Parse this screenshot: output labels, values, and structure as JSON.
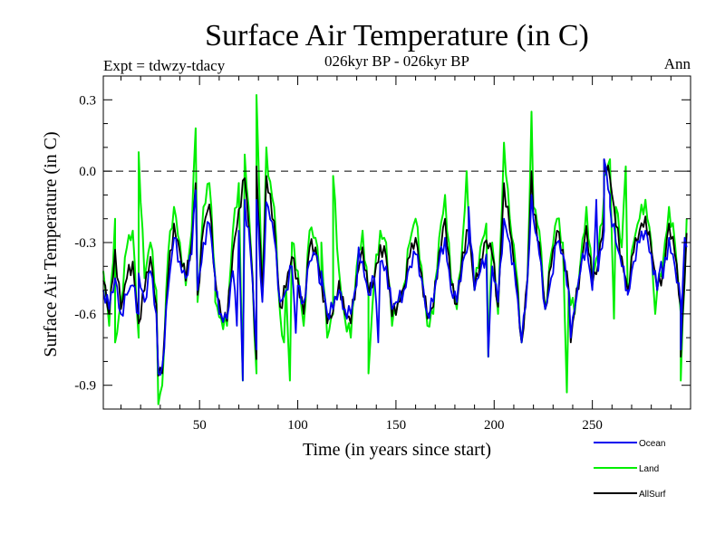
{
  "chart_data": {
    "type": "line",
    "title": "Surface Air Temperature (in C)",
    "subtitle": "026kyr BP - 026kyr BP",
    "left_note": "Expt = tdwzy-tdacy",
    "right_note": "Ann",
    "xlabel": "Time (in years since start)",
    "ylabel": "Surface Air Temperature (in C)",
    "xlim": [
      1,
      300
    ],
    "ylim": [
      -1.0,
      0.4
    ],
    "x_ticks": [
      50,
      100,
      150,
      200,
      250
    ],
    "x_tick_labels": [
      "50",
      "100",
      "150",
      "200",
      "250"
    ],
    "y_ticks": [
      0.3,
      0.0,
      -0.3,
      -0.6,
      -0.9
    ],
    "y_tick_labels": [
      "0.3",
      "0.0",
      "-0.3",
      "-0.6",
      "-0.9"
    ],
    "reference_line": 0.0,
    "x_step": 3,
    "series": [
      {
        "name": "Ocean",
        "color": "#0000ee",
        "values": [
          -0.5,
          -0.58,
          -0.45,
          -0.6,
          -0.52,
          -0.48,
          -0.6,
          -0.55,
          -0.42,
          -0.6,
          -0.82,
          -0.5,
          -0.28,
          -0.38,
          -0.45,
          -0.35,
          -0.5,
          -0.3,
          -0.22,
          -0.45,
          -0.6,
          -0.62,
          -0.42,
          -0.25,
          -0.12,
          -0.35,
          -0.75,
          -0.55,
          -0.15,
          -0.28,
          -0.55,
          -0.5,
          -0.4,
          -0.48,
          -0.55,
          -0.38,
          -0.35,
          -0.48,
          -0.6,
          -0.58,
          -0.5,
          -0.58,
          -0.6,
          -0.48,
          -0.38,
          -0.52,
          -0.45,
          -0.38,
          -0.4,
          -0.58,
          -0.55,
          -0.5,
          -0.4,
          -0.35,
          -0.45,
          -0.6,
          -0.55,
          -0.38,
          -0.28,
          -0.5,
          -0.55,
          -0.38,
          -0.3,
          -0.5,
          -0.42,
          -0.35,
          -0.4,
          -0.55,
          -0.2,
          -0.3,
          -0.48,
          -0.72,
          -0.45,
          -0.2,
          -0.35,
          -0.58,
          -0.45,
          -0.3,
          -0.35,
          -0.5,
          -0.58,
          -0.42,
          -0.3,
          -0.5,
          -0.42,
          -0.25,
          -0.1,
          -0.3,
          -0.4,
          -0.5,
          -0.38,
          -0.3,
          -0.25,
          -0.35,
          -0.5,
          -0.45,
          -0.28,
          -0.4,
          -0.55,
          -0.32
        ],
        "peaks": [
          [
            19,
            -0.43
          ],
          [
            29,
            -0.85
          ],
          [
            48,
            -0.08
          ],
          [
            58,
            -0.5
          ],
          [
            69,
            -0.65
          ],
          [
            72,
            -0.88
          ],
          [
            79,
            -0.12
          ],
          [
            84,
            -0.13
          ],
          [
            99,
            -0.68
          ],
          [
            112,
            -0.42
          ],
          [
            131,
            -0.32
          ],
          [
            141,
            -0.72
          ],
          [
            187,
            -0.15
          ],
          [
            197,
            -0.78
          ],
          [
            219,
            -0.1
          ],
          [
            239,
            -0.7
          ],
          [
            252,
            -0.12
          ],
          [
            256,
            0.05
          ],
          [
            259,
            -0.15
          ],
          [
            268,
            -0.52
          ],
          [
            285,
            -0.38
          ],
          [
            295,
            -0.75
          ],
          [
            297,
            -0.28
          ]
        ]
      },
      {
        "name": "Land",
        "color": "#00ee00",
        "values": [
          -0.42,
          -0.65,
          -0.2,
          -0.55,
          -0.32,
          -0.25,
          -0.7,
          -0.45,
          -0.3,
          -0.5,
          -0.9,
          -0.35,
          -0.15,
          -0.3,
          -0.48,
          -0.25,
          -0.55,
          -0.15,
          -0.05,
          -0.45,
          -0.62,
          -0.65,
          -0.25,
          -0.05,
          0.07,
          -0.3,
          -0.85,
          -0.5,
          -0.02,
          -0.15,
          -0.6,
          -0.48,
          -0.3,
          -0.42,
          -0.65,
          -0.25,
          -0.28,
          -0.45,
          -0.7,
          -0.6,
          -0.42,
          -0.62,
          -0.7,
          -0.4,
          -0.25,
          -0.52,
          -0.45,
          -0.25,
          -0.3,
          -0.65,
          -0.55,
          -0.48,
          -0.3,
          -0.2,
          -0.4,
          -0.65,
          -0.6,
          -0.28,
          -0.1,
          -0.45,
          -0.58,
          -0.28,
          -0.2,
          -0.5,
          -0.32,
          -0.22,
          -0.3,
          -0.6,
          0.12,
          -0.2,
          -0.4,
          -0.72,
          -0.45,
          -0.15,
          -0.25,
          -0.58,
          -0.35,
          -0.2,
          -0.3,
          -0.5,
          -0.6,
          -0.38,
          -0.15,
          -0.45,
          -0.35,
          -0.1,
          0.05,
          -0.15,
          -0.32,
          -0.5,
          -0.3,
          -0.2,
          -0.12,
          -0.3,
          -0.5,
          -0.38,
          -0.15,
          -0.3,
          -0.6,
          -0.2
        ],
        "peaks": [
          [
            7,
            -0.72
          ],
          [
            19,
            0.08
          ],
          [
            29,
            -0.98
          ],
          [
            48,
            0.18
          ],
          [
            58,
            -0.55
          ],
          [
            72,
            -0.88
          ],
          [
            79,
            0.32
          ],
          [
            84,
            0.1
          ],
          [
            93,
            -0.72
          ],
          [
            96,
            -0.88
          ],
          [
            112,
            -0.3
          ],
          [
            118,
            -0.02
          ],
          [
            136,
            -0.85
          ],
          [
            186,
            0.0
          ],
          [
            197,
            -0.78
          ],
          [
            219,
            0.25
          ],
          [
            237,
            -0.93
          ],
          [
            256,
            -0.02
          ],
          [
            261,
            -0.62
          ],
          [
            267,
            0.02
          ],
          [
            282,
            -0.6
          ],
          [
            295,
            -0.88
          ]
        ]
      },
      {
        "name": "AllSurf",
        "color": "#000000",
        "values": [
          -0.46,
          -0.6,
          -0.33,
          -0.58,
          -0.45,
          -0.38,
          -0.64,
          -0.5,
          -0.36,
          -0.56,
          -0.85,
          -0.44,
          -0.22,
          -0.34,
          -0.46,
          -0.3,
          -0.52,
          -0.24,
          -0.14,
          -0.45,
          -0.61,
          -0.63,
          -0.34,
          -0.16,
          -0.03,
          -0.32,
          -0.79,
          -0.52,
          -0.09,
          -0.21,
          -0.57,
          -0.49,
          -0.36,
          -0.45,
          -0.6,
          -0.32,
          -0.32,
          -0.46,
          -0.64,
          -0.59,
          -0.46,
          -0.6,
          -0.64,
          -0.44,
          -0.32,
          -0.52,
          -0.45,
          -0.31,
          -0.36,
          -0.61,
          -0.55,
          -0.49,
          -0.36,
          -0.28,
          -0.43,
          -0.62,
          -0.57,
          -0.34,
          -0.2,
          -0.48,
          -0.56,
          -0.34,
          -0.25,
          -0.5,
          -0.37,
          -0.29,
          -0.35,
          -0.57,
          -0.05,
          -0.25,
          -0.44,
          -0.72,
          -0.45,
          -0.18,
          -0.3,
          -0.58,
          -0.4,
          -0.25,
          -0.33,
          -0.5,
          -0.59,
          -0.4,
          -0.23,
          -0.48,
          -0.39,
          -0.18,
          -0.03,
          -0.23,
          -0.36,
          -0.5,
          -0.34,
          -0.25,
          -0.19,
          -0.33,
          -0.5,
          -0.42,
          -0.22,
          -0.35,
          -0.57,
          -0.26
        ],
        "peaks": [
          [
            29,
            -0.86
          ],
          [
            48,
            -0.05
          ],
          [
            79,
            0.02
          ],
          [
            84,
            -0.02
          ],
          [
            219,
            0.0
          ],
          [
            239,
            -0.72
          ],
          [
            256,
            0.05
          ],
          [
            295,
            -0.78
          ]
        ]
      }
    ]
  },
  "legend": {
    "items": [
      {
        "label": "Ocean",
        "color": "#0000ee"
      },
      {
        "label": "Land",
        "color": "#00ee00"
      },
      {
        "label": "AllSurf",
        "color": "#000000"
      }
    ]
  }
}
